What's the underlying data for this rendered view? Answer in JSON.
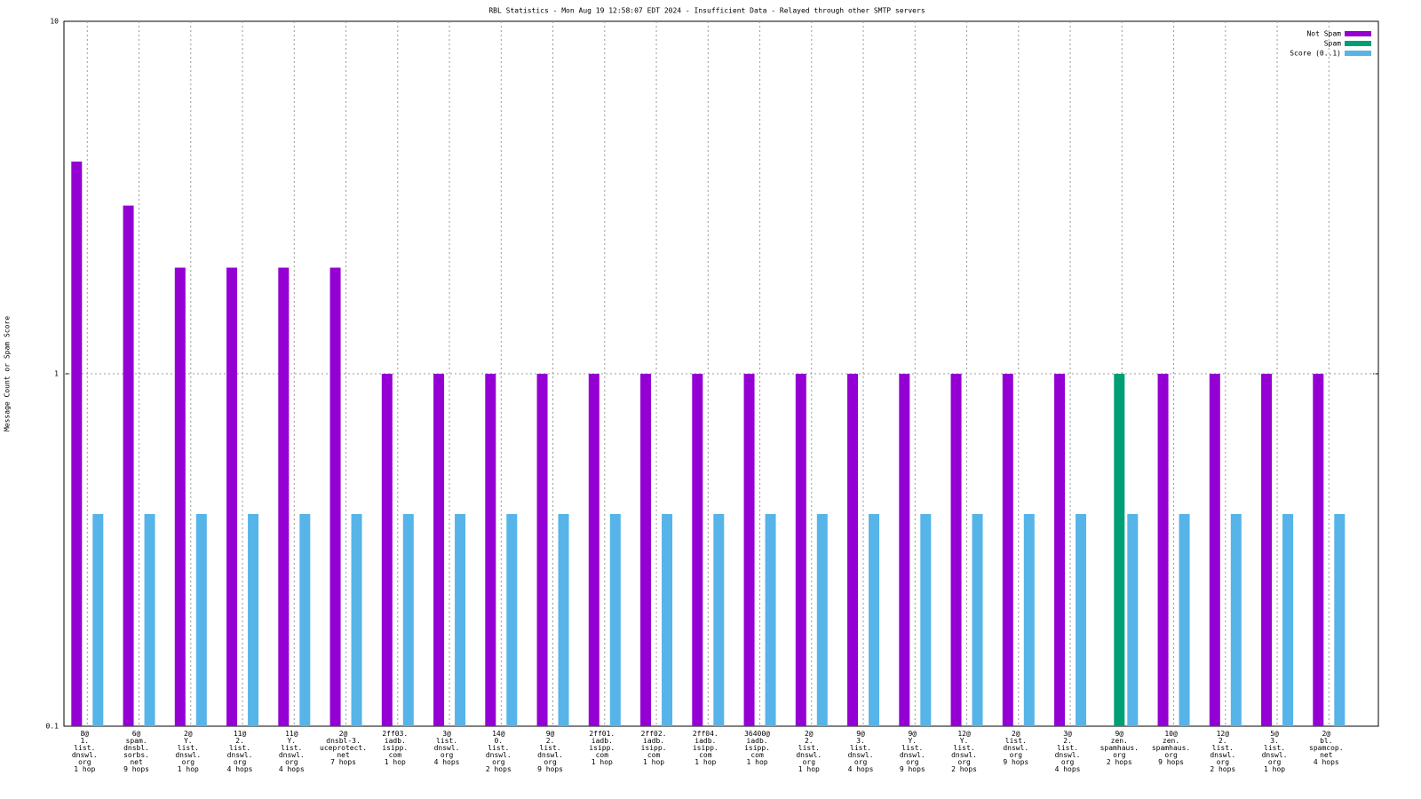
{
  "chart_data": {
    "type": "bar",
    "title": "RBL Statistics - Mon Aug 19 12:58:07 EDT 2024 - Insufficient Data - Relayed through other SMTP servers",
    "y_label": "Message Count or Spam Score",
    "log_y": true,
    "grid": true,
    "legend": "top-right",
    "ylim": [
      0.1,
      10
    ],
    "yticks": [
      0.1,
      1,
      10
    ],
    "categories": [
      [
        "8@",
        "1.",
        "list.",
        "dnswl.",
        "org",
        "1 hop"
      ],
      [
        "6@",
        "spam.",
        "dnsbl.",
        "sorbs.",
        "net",
        "9 hops"
      ],
      [
        "2@",
        "Y.",
        "list.",
        "dnswl.",
        "org",
        "1 hop"
      ],
      [
        "11@",
        "2.",
        "list.",
        "dnswl.",
        "org",
        "4 hops"
      ],
      [
        "11@",
        "Y.",
        "list.",
        "dnswl.",
        "org",
        "4 hops"
      ],
      [
        "2@",
        "dnsbl-3.",
        "uceprotect.",
        "net",
        "7 hops"
      ],
      [
        "2ff03.",
        "iadb.",
        "isipp.",
        "com",
        "1 hop"
      ],
      [
        "3@",
        "list.",
        "dnswl.",
        "org",
        "4 hops"
      ],
      [
        "14@",
        "0.",
        "list.",
        "dnswl.",
        "org",
        "2 hops"
      ],
      [
        "9@",
        "2.",
        "list.",
        "dnswl.",
        "org",
        "9 hops"
      ],
      [
        "2ff01.",
        "iadb.",
        "isipp.",
        "com",
        "1 hop"
      ],
      [
        "2ff02.",
        "iadb.",
        "isipp.",
        "com",
        "1 hop"
      ],
      [
        "2ff04.",
        "iadb.",
        "isipp.",
        "com",
        "1 hop"
      ],
      [
        "36400@",
        "iadb.",
        "isipp.",
        "com",
        "1 hop"
      ],
      [
        "2@",
        "2.",
        "list.",
        "dnswl.",
        "org",
        "1 hop"
      ],
      [
        "9@",
        "3.",
        "list.",
        "dnswl.",
        "org",
        "4 hops"
      ],
      [
        "9@",
        "Y.",
        "list.",
        "dnswl.",
        "org",
        "9 hops"
      ],
      [
        "12@",
        "Y.",
        "list.",
        "dnswl.",
        "org",
        "2 hops"
      ],
      [
        "2@",
        "list.",
        "dnswl.",
        "org",
        "9 hops"
      ],
      [
        "3@",
        "2.",
        "list.",
        "dnswl.",
        "org",
        "4 hops"
      ],
      [
        "9@",
        "zen.",
        "spamhaus.",
        "org",
        "2 hops"
      ],
      [
        "10@",
        "zen.",
        "spamhaus.",
        "org",
        "9 hops"
      ],
      [
        "12@",
        "2.",
        "list.",
        "dnswl.",
        "org",
        "2 hops"
      ],
      [
        "5@",
        "3.",
        "list.",
        "dnswl.",
        "org",
        "1 hop"
      ],
      [
        "2@",
        "bl.",
        "spamcop.",
        "net",
        "4 hops"
      ]
    ],
    "series": [
      {
        "name": "Not Spam",
        "color": "#9400d3",
        "values": [
          4,
          3,
          2,
          2,
          2,
          2,
          1,
          1,
          1,
          1,
          1,
          1,
          1,
          1,
          1,
          1,
          1,
          1,
          1,
          1,
          null,
          1,
          1,
          1,
          1
        ]
      },
      {
        "name": "Spam",
        "color": "#009e73",
        "values": [
          null,
          null,
          null,
          null,
          null,
          null,
          null,
          null,
          null,
          null,
          null,
          null,
          null,
          null,
          null,
          null,
          null,
          null,
          null,
          null,
          1,
          null,
          null,
          null,
          null
        ]
      },
      {
        "name": "Score (0..1)",
        "color": "#56b4e9",
        "values": [
          0.4,
          0.4,
          0.4,
          0.4,
          0.4,
          0.4,
          0.4,
          0.4,
          0.4,
          0.4,
          0.4,
          0.4,
          0.4,
          0.4,
          0.4,
          0.4,
          0.4,
          0.4,
          0.4,
          0.4,
          0.4,
          0.4,
          0.4,
          0.4,
          0.4
        ]
      }
    ]
  }
}
